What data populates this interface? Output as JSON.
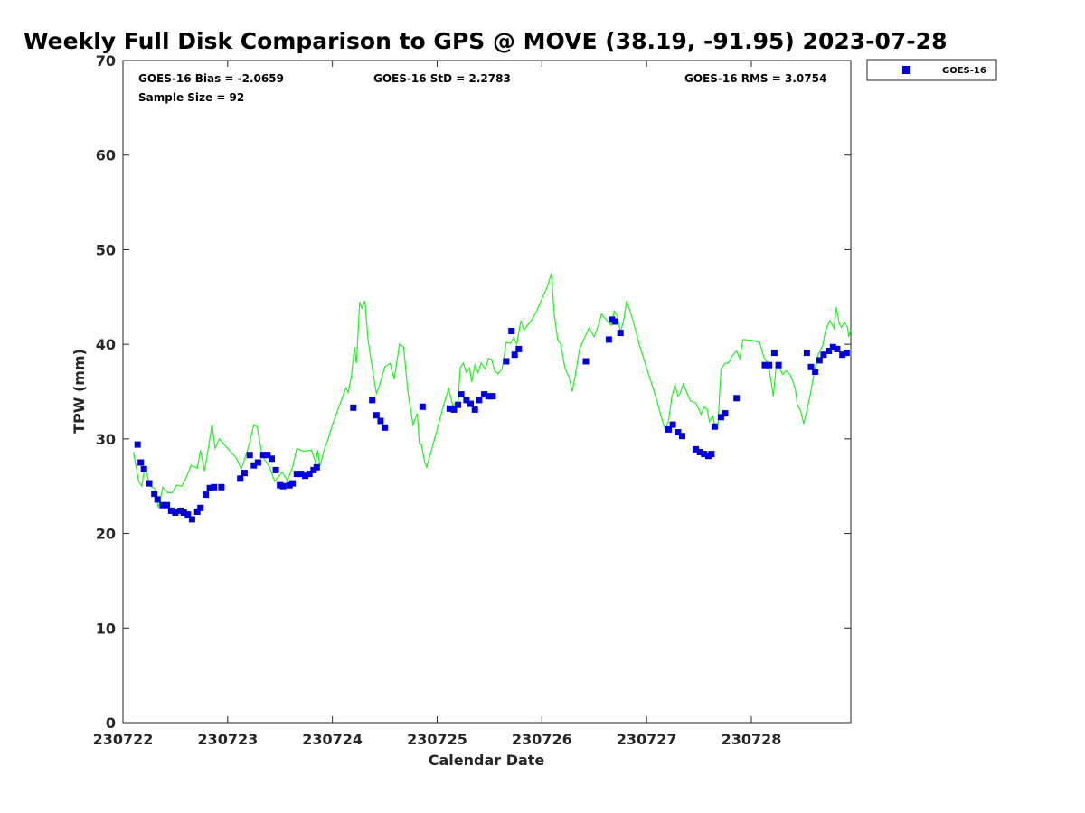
{
  "chart_data": {
    "type": "scatter",
    "title": "Weekly Full Disk Comparison to GPS @ MOVE (38.19, -91.95) 2023-07-28",
    "xlabel": "Calendar Date",
    "ylabel": "TPW (mm)",
    "xlim": [
      0,
      6.95
    ],
    "ylim": [
      0,
      70
    ],
    "x_ticks": [
      {
        "value": 0,
        "label": "230722"
      },
      {
        "value": 1,
        "label": "230723"
      },
      {
        "value": 2,
        "label": "230724"
      },
      {
        "value": 3,
        "label": "230725"
      },
      {
        "value": 4,
        "label": "230726"
      },
      {
        "value": 5,
        "label": "230727"
      },
      {
        "value": 6,
        "label": "230728"
      }
    ],
    "y_ticks": [
      0,
      10,
      20,
      30,
      40,
      50,
      60,
      70
    ],
    "stats": {
      "bias": "GOES-16 Bias = -2.0659",
      "std": "GOES-16 StD = 2.2783",
      "rms": "GOES-16 RMS = 3.0754",
      "sample": "Sample Size = 92"
    },
    "legend": {
      "label": "GOES-16",
      "color": "#0000dd",
      "position": "top-right outside"
    },
    "series": [
      {
        "name": "GPS",
        "type": "line",
        "color": "#22ee22",
        "points": [
          [
            0.1,
            28.6
          ],
          [
            0.15,
            25.5
          ],
          [
            0.18,
            25.0
          ],
          [
            0.21,
            27.2
          ],
          [
            0.23,
            26.2
          ],
          [
            0.26,
            25.0
          ],
          [
            0.3,
            24.8
          ],
          [
            0.34,
            22.7
          ],
          [
            0.38,
            24.9
          ],
          [
            0.43,
            24.3
          ],
          [
            0.47,
            24.3
          ],
          [
            0.51,
            25.1
          ],
          [
            0.56,
            25.0
          ],
          [
            0.6,
            25.8
          ],
          [
            0.65,
            27.2
          ],
          [
            0.71,
            26.9
          ],
          [
            0.74,
            28.8
          ],
          [
            0.78,
            26.6
          ],
          [
            0.85,
            31.5
          ],
          [
            0.88,
            29.0
          ],
          [
            0.92,
            30.0
          ],
          [
            1.0,
            29.0
          ],
          [
            1.08,
            28.0
          ],
          [
            1.13,
            26.8
          ],
          [
            1.2,
            29.2
          ],
          [
            1.25,
            31.5
          ],
          [
            1.28,
            31.3
          ],
          [
            1.33,
            28.2
          ],
          [
            1.4,
            27.0
          ],
          [
            1.45,
            25.5
          ],
          [
            1.52,
            26.5
          ],
          [
            1.57,
            25.6
          ],
          [
            1.62,
            27.0
          ],
          [
            1.66,
            29.0
          ],
          [
            1.72,
            28.7
          ],
          [
            1.8,
            28.8
          ],
          [
            1.84,
            27.5
          ],
          [
            1.86,
            28.8
          ],
          [
            1.88,
            27.1
          ],
          [
            1.92,
            28.8
          ],
          [
            1.96,
            30.0
          ],
          [
            2.0,
            31.5
          ],
          [
            2.05,
            33.0
          ],
          [
            2.1,
            34.5
          ],
          [
            2.13,
            35.4
          ],
          [
            2.15,
            34.9
          ],
          [
            2.18,
            36.5
          ],
          [
            2.21,
            39.7
          ],
          [
            2.23,
            38.0
          ],
          [
            2.26,
            44.5
          ],
          [
            2.28,
            43.8
          ],
          [
            2.31,
            44.6
          ],
          [
            2.34,
            40.5
          ],
          [
            2.38,
            37.5
          ],
          [
            2.42,
            34.8
          ],
          [
            2.45,
            35.7
          ],
          [
            2.5,
            37.6
          ],
          [
            2.55,
            38.0
          ],
          [
            2.59,
            36.3
          ],
          [
            2.64,
            40.0
          ],
          [
            2.68,
            39.7
          ],
          [
            2.72,
            35.0
          ],
          [
            2.77,
            31.5
          ],
          [
            2.81,
            32.7
          ],
          [
            2.83,
            29.5
          ],
          [
            2.85,
            29.4
          ],
          [
            2.88,
            27.6
          ],
          [
            2.9,
            27.0
          ],
          [
            2.95,
            29.0
          ],
          [
            3.0,
            31.0
          ],
          [
            3.06,
            33.5
          ],
          [
            3.11,
            35.3
          ],
          [
            3.15,
            33.5
          ],
          [
            3.2,
            34.0
          ],
          [
            3.22,
            37.5
          ],
          [
            3.25,
            38.0
          ],
          [
            3.28,
            37.0
          ],
          [
            3.31,
            37.5
          ],
          [
            3.33,
            36.0
          ],
          [
            3.36,
            37.8
          ],
          [
            3.39,
            37.0
          ],
          [
            3.42,
            38.0
          ],
          [
            3.46,
            37.4
          ],
          [
            3.49,
            38.5
          ],
          [
            3.52,
            38.4
          ],
          [
            3.55,
            37.2
          ],
          [
            3.58,
            36.9
          ],
          [
            3.62,
            37.4
          ],
          [
            3.66,
            40.2
          ],
          [
            3.7,
            40.1
          ],
          [
            3.73,
            40.7
          ],
          [
            3.76,
            40.0
          ],
          [
            3.8,
            42.5
          ],
          [
            3.83,
            41.5
          ],
          [
            3.86,
            42.0
          ],
          [
            3.9,
            42.5
          ],
          [
            3.95,
            43.5
          ],
          [
            4.0,
            44.8
          ],
          [
            4.05,
            46.0
          ],
          [
            4.09,
            47.5
          ],
          [
            4.12,
            43.0
          ],
          [
            4.15,
            40.5
          ],
          [
            4.18,
            40.0
          ],
          [
            4.22,
            37.5
          ],
          [
            4.26,
            36.5
          ],
          [
            4.29,
            35.0
          ],
          [
            4.32,
            36.8
          ],
          [
            4.36,
            39.5
          ],
          [
            4.4,
            40.5
          ],
          [
            4.45,
            41.7
          ],
          [
            4.5,
            40.8
          ],
          [
            4.54,
            42.0
          ],
          [
            4.57,
            43.2
          ],
          [
            4.62,
            42.5
          ],
          [
            4.66,
            42.0
          ],
          [
            4.69,
            43.5
          ],
          [
            4.72,
            43.0
          ],
          [
            4.75,
            41.3
          ],
          [
            4.78,
            42.5
          ],
          [
            4.81,
            44.6
          ],
          [
            4.87,
            42.5
          ],
          [
            4.93,
            40.0
          ],
          [
            5.0,
            37.5
          ],
          [
            5.05,
            35.8
          ],
          [
            5.1,
            34.0
          ],
          [
            5.14,
            32.3
          ],
          [
            5.18,
            30.9
          ],
          [
            5.21,
            32.0
          ],
          [
            5.24,
            34.3
          ],
          [
            5.27,
            35.7
          ],
          [
            5.3,
            34.5
          ],
          [
            5.32,
            34.8
          ],
          [
            5.35,
            35.8
          ],
          [
            5.38,
            35.0
          ],
          [
            5.42,
            34.0
          ],
          [
            5.47,
            33.8
          ],
          [
            5.52,
            32.6
          ],
          [
            5.55,
            33.4
          ],
          [
            5.58,
            33.1
          ],
          [
            5.6,
            31.8
          ],
          [
            5.63,
            32.4
          ],
          [
            5.65,
            31.5
          ],
          [
            5.68,
            31.2
          ],
          [
            5.71,
            37.4
          ],
          [
            5.75,
            38.0
          ],
          [
            5.78,
            38.0
          ],
          [
            5.82,
            38.8
          ],
          [
            5.86,
            39.3
          ],
          [
            5.89,
            38.5
          ],
          [
            5.92,
            40.5
          ],
          [
            6.02,
            40.4
          ],
          [
            6.08,
            40.2
          ],
          [
            6.12,
            38.6
          ],
          [
            6.16,
            38.0
          ],
          [
            6.19,
            36.0
          ],
          [
            6.21,
            34.5
          ],
          [
            6.24,
            38.0
          ],
          [
            6.27,
            37.5
          ],
          [
            6.3,
            36.8
          ],
          [
            6.33,
            37.2
          ],
          [
            6.37,
            36.8
          ],
          [
            6.4,
            36.0
          ],
          [
            6.42,
            35.3
          ],
          [
            6.44,
            33.6
          ],
          [
            6.47,
            33.0
          ],
          [
            6.5,
            31.6
          ],
          [
            6.53,
            33.0
          ],
          [
            6.56,
            34.5
          ],
          [
            6.6,
            37.0
          ],
          [
            6.64,
            39.0
          ],
          [
            6.68,
            39.8
          ],
          [
            6.71,
            41.5
          ],
          [
            6.75,
            42.5
          ],
          [
            6.79,
            41.7
          ],
          [
            6.81,
            43.9
          ],
          [
            6.84,
            42.2
          ],
          [
            6.86,
            41.8
          ],
          [
            6.89,
            42.3
          ],
          [
            6.92,
            41.8
          ],
          [
            6.93,
            40.8
          ],
          [
            6.95,
            41.5
          ]
        ]
      },
      {
        "name": "GOES-16",
        "type": "scatter",
        "color": "#0000dd",
        "points": [
          [
            0.14,
            29.4
          ],
          [
            0.17,
            27.5
          ],
          [
            0.2,
            26.8
          ],
          [
            0.25,
            25.3
          ],
          [
            0.3,
            24.2
          ],
          [
            0.33,
            23.6
          ],
          [
            0.38,
            23.0
          ],
          [
            0.42,
            23.0
          ],
          [
            0.46,
            22.4
          ],
          [
            0.5,
            22.2
          ],
          [
            0.55,
            22.4
          ],
          [
            0.58,
            22.2
          ],
          [
            0.62,
            22.0
          ],
          [
            0.66,
            21.5
          ],
          [
            0.71,
            22.3
          ],
          [
            0.74,
            22.7
          ],
          [
            0.79,
            24.1
          ],
          [
            0.83,
            24.8
          ],
          [
            0.87,
            24.9
          ],
          [
            0.94,
            24.9
          ],
          [
            1.12,
            25.8
          ],
          [
            1.16,
            26.4
          ],
          [
            1.21,
            28.3
          ],
          [
            1.25,
            27.2
          ],
          [
            1.29,
            27.5
          ],
          [
            1.34,
            28.3
          ],
          [
            1.38,
            28.3
          ],
          [
            1.42,
            27.9
          ],
          [
            1.46,
            26.7
          ],
          [
            1.5,
            25.1
          ],
          [
            1.53,
            25.0
          ],
          [
            1.59,
            25.1
          ],
          [
            1.62,
            25.3
          ],
          [
            1.66,
            26.3
          ],
          [
            1.7,
            26.3
          ],
          [
            1.74,
            26.1
          ],
          [
            1.78,
            26.3
          ],
          [
            1.82,
            26.7
          ],
          [
            1.85,
            27.0
          ],
          [
            2.2,
            33.3
          ],
          [
            2.38,
            34.1
          ],
          [
            2.42,
            32.5
          ],
          [
            2.46,
            31.9
          ],
          [
            2.5,
            31.2
          ],
          [
            2.86,
            33.4
          ],
          [
            3.12,
            33.2
          ],
          [
            3.16,
            33.1
          ],
          [
            3.2,
            33.6
          ],
          [
            3.23,
            34.7
          ],
          [
            3.28,
            34.1
          ],
          [
            3.32,
            33.7
          ],
          [
            3.36,
            33.1
          ],
          [
            3.4,
            34.1
          ],
          [
            3.45,
            34.7
          ],
          [
            3.49,
            34.5
          ],
          [
            3.53,
            34.5
          ],
          [
            3.66,
            38.2
          ],
          [
            3.71,
            41.4
          ],
          [
            3.74,
            38.9
          ],
          [
            3.78,
            39.5
          ],
          [
            4.42,
            38.2
          ],
          [
            4.64,
            40.5
          ],
          [
            4.67,
            42.6
          ],
          [
            4.7,
            42.4
          ],
          [
            4.75,
            41.2
          ],
          [
            5.21,
            31.0
          ],
          [
            5.25,
            31.5
          ],
          [
            5.3,
            30.7
          ],
          [
            5.34,
            30.3
          ],
          [
            5.47,
            28.9
          ],
          [
            5.51,
            28.6
          ],
          [
            5.55,
            28.4
          ],
          [
            5.59,
            28.2
          ],
          [
            5.62,
            28.4
          ],
          [
            5.65,
            31.3
          ],
          [
            5.71,
            32.3
          ],
          [
            5.75,
            32.7
          ],
          [
            5.86,
            34.3
          ],
          [
            6.13,
            37.8
          ],
          [
            6.17,
            37.8
          ],
          [
            6.22,
            39.1
          ],
          [
            6.26,
            37.8
          ],
          [
            6.53,
            39.1
          ],
          [
            6.57,
            37.6
          ],
          [
            6.61,
            37.1
          ],
          [
            6.65,
            38.3
          ],
          [
            6.69,
            38.9
          ],
          [
            6.74,
            39.3
          ],
          [
            6.78,
            39.7
          ],
          [
            6.82,
            39.5
          ],
          [
            6.87,
            38.9
          ],
          [
            6.91,
            39.1
          ]
        ]
      }
    ]
  }
}
